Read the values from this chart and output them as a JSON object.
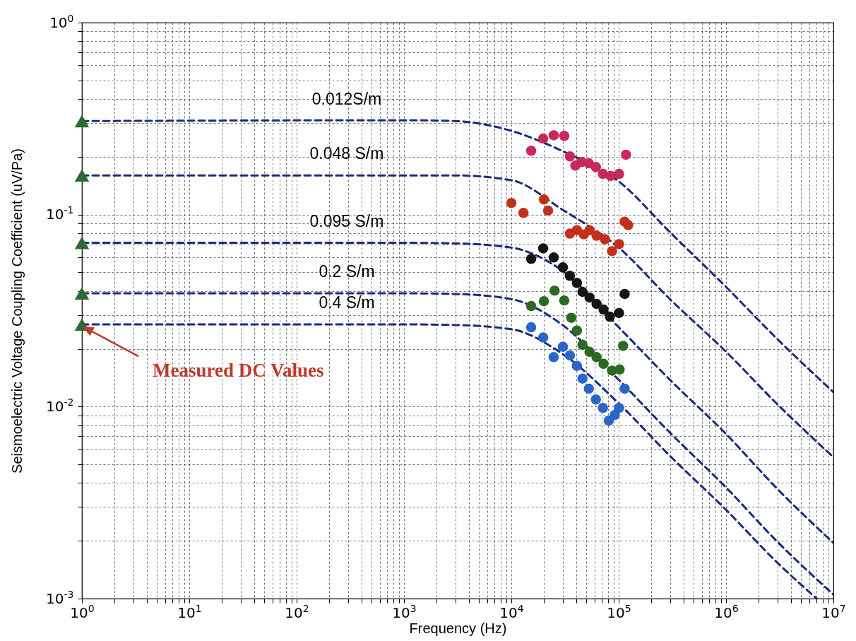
{
  "chart_data": {
    "type": "scatter",
    "xlabel": "Frequency (Hz)",
    "ylabel": "Seismoelectric Voltage Coupling Coefficient (uV/Pa)",
    "log": "xy",
    "grid": true,
    "xlim": [
      1,
      10000000
    ],
    "ylim": [
      0.001,
      1
    ],
    "xticks": [
      {
        "value": 1,
        "label": "10$^{0}$"
      },
      {
        "value": 2,
        "label": null
      },
      {
        "value": 3,
        "label": null
      },
      {
        "value": 4,
        "label": null
      },
      {
        "value": 5,
        "label": null
      },
      {
        "value": 6,
        "label": null
      },
      {
        "value": 7,
        "label": null
      },
      {
        "value": 8,
        "label": null
      },
      {
        "value": 9,
        "label": null
      },
      {
        "value": 10,
        "label": "10$^{1}$"
      },
      {
        "value": 20,
        "label": null
      },
      {
        "value": 30,
        "label": null
      },
      {
        "value": 40,
        "label": null
      },
      {
        "value": 50,
        "label": null
      },
      {
        "value": 60,
        "label": null
      },
      {
        "value": 70,
        "label": null
      },
      {
        "value": 80,
        "label": null
      },
      {
        "value": 90,
        "label": null
      },
      {
        "value": 100,
        "label": "10$^{2}$"
      },
      {
        "value": 200,
        "label": null
      },
      {
        "value": 300,
        "label": null
      },
      {
        "value": 400,
        "label": null
      },
      {
        "value": 500,
        "label": null
      },
      {
        "value": 600,
        "label": null
      },
      {
        "value": 700,
        "label": null
      },
      {
        "value": 800,
        "label": null
      },
      {
        "value": 900,
        "label": null
      },
      {
        "value": 1000,
        "label": "10$^{3}$"
      },
      {
        "value": 2000,
        "label": null
      },
      {
        "value": 3000,
        "label": null
      },
      {
        "value": 4000,
        "label": null
      },
      {
        "value": 5000,
        "label": null
      },
      {
        "value": 6000,
        "label": null
      },
      {
        "value": 7000,
        "label": null
      },
      {
        "value": 8000,
        "label": null
      },
      {
        "value": 9000,
        "label": null
      },
      {
        "value": 10000,
        "label": "10$^{4}$"
      },
      {
        "value": 20000,
        "label": null
      },
      {
        "value": 30000,
        "label": null
      },
      {
        "value": 40000,
        "label": null
      },
      {
        "value": 50000,
        "label": null
      },
      {
        "value": 60000,
        "label": null
      },
      {
        "value": 70000,
        "label": null
      },
      {
        "value": 80000,
        "label": null
      },
      {
        "value": 90000,
        "label": null
      },
      {
        "value": 100000,
        "label": "10$^{5}$"
      },
      {
        "value": 200000,
        "label": null
      },
      {
        "value": 300000,
        "label": null
      },
      {
        "value": 400000,
        "label": null
      },
      {
        "value": 500000,
        "label": null
      },
      {
        "value": 600000,
        "label": null
      },
      {
        "value": 700000,
        "label": null
      },
      {
        "value": 800000,
        "label": null
      },
      {
        "value": 900000,
        "label": null
      },
      {
        "value": 1000000,
        "label": "10$^{6}$"
      },
      {
        "value": 2000000,
        "label": null
      },
      {
        "value": 3000000,
        "label": null
      },
      {
        "value": 4000000,
        "label": null
      },
      {
        "value": 5000000,
        "label": null
      },
      {
        "value": 6000000,
        "label": null
      },
      {
        "value": 7000000,
        "label": null
      },
      {
        "value": 8000000,
        "label": null
      },
      {
        "value": 9000000,
        "label": null
      },
      {
        "value": 10000000,
        "label": "10$^{7}$"
      }
    ],
    "yticks": [
      {
        "value": 0.001,
        "label": "10$^{-3}$"
      },
      {
        "value": 0.002,
        "label": null
      },
      {
        "value": 0.003,
        "label": null
      },
      {
        "value": 0.004,
        "label": null
      },
      {
        "value": 0.005,
        "label": null
      },
      {
        "value": 0.006,
        "label": null
      },
      {
        "value": 0.007,
        "label": null
      },
      {
        "value": 0.008,
        "label": null
      },
      {
        "value": 0.009,
        "label": null
      },
      {
        "value": 0.01,
        "label": "10$^{-2}$"
      },
      {
        "value": 0.02,
        "label": null
      },
      {
        "value": 0.03,
        "label": null
      },
      {
        "value": 0.04,
        "label": null
      },
      {
        "value": 0.05,
        "label": null
      },
      {
        "value": 0.06,
        "label": null
      },
      {
        "value": 0.07,
        "label": null
      },
      {
        "value": 0.08,
        "label": null
      },
      {
        "value": 0.09,
        "label": null
      },
      {
        "value": 0.1,
        "label": "10$^{-1}$"
      },
      {
        "value": 0.2,
        "label": null
      },
      {
        "value": 0.3,
        "label": null
      },
      {
        "value": 0.4,
        "label": null
      },
      {
        "value": 0.5,
        "label": null
      },
      {
        "value": 0.6,
        "label": null
      },
      {
        "value": 0.7,
        "label": null
      },
      {
        "value": 0.8,
        "label": null
      },
      {
        "value": 0.9,
        "label": null
      },
      {
        "value": 1,
        "label": "10$^{0}$"
      }
    ],
    "series": [
      {
        "type": "line",
        "color": "#1c2a80",
        "line_style": "dashed",
        "marker": "none",
        "x": [
          1,
          1000,
          3000,
          10000,
          30000,
          100000,
          300000,
          1000000,
          3000000,
          10000000
        ],
        "values": [
          0.307,
          0.31,
          0.307,
          0.273,
          0.214,
          0.149,
          0.081,
          0.042,
          0.0225,
          0.0119
        ]
      },
      {
        "type": "line",
        "color": "#1c2a80",
        "line_style": "dashed",
        "marker": "none",
        "x": [
          1,
          1000,
          3000,
          10000,
          30000,
          100000,
          300000,
          1000000,
          3000000,
          10000000
        ],
        "values": [
          0.16,
          0.16,
          0.16,
          0.151,
          0.106,
          0.0673,
          0.0363,
          0.0193,
          0.0103,
          0.00545
        ]
      },
      {
        "type": "line",
        "color": "#1c2a80",
        "line_style": "dashed",
        "marker": "none",
        "x": [
          1,
          1000,
          3000,
          10000,
          30000,
          100000,
          300000,
          1000000,
          3000000,
          10000000
        ],
        "values": [
          0.0713,
          0.0713,
          0.0708,
          0.0673,
          0.0509,
          0.0259,
          0.0138,
          0.0072,
          0.00373,
          0.00195
        ]
      },
      {
        "type": "line",
        "color": "#1c2a80",
        "line_style": "dashed",
        "marker": "none",
        "x": [
          1,
          1000,
          3000,
          10000,
          30000,
          100000,
          300000,
          1000000,
          3000000,
          10000000
        ],
        "values": [
          0.0389,
          0.0389,
          0.0386,
          0.0363,
          0.0266,
          0.0138,
          0.00732,
          0.00379,
          0.00198,
          0.00105
        ]
      },
      {
        "type": "line",
        "color": "#1c2a80",
        "line_style": "dashed",
        "marker": "none",
        "x": [
          1,
          1000,
          3000,
          10000,
          30000,
          100000,
          300000,
          1000000,
          3000000,
          7000000
        ],
        "values": [
          0.0268,
          0.0268,
          0.0266,
          0.0253,
          0.0188,
          0.0104,
          0.00554,
          0.0029,
          0.00154,
          0.001
        ]
      },
      {
        "color": "#c8285a",
        "marker": "circle",
        "x": [
          15300,
          19800,
          24800,
          31100,
          35100,
          39500,
          45300,
          52700,
          61300,
          71300,
          84100,
          100700,
          117000
        ],
        "values": [
          0.215,
          0.249,
          0.259,
          0.257,
          0.201,
          0.18,
          0.188,
          0.185,
          0.177,
          0.163,
          0.159,
          0.163,
          0.205
        ]
      },
      {
        "color": "#c0301a",
        "marker": "circle",
        "x": [
          10000,
          12970,
          20100,
          22000,
          35100,
          40800,
          47400,
          53500,
          62200,
          74500,
          86700,
          100700,
          113700,
          122500
        ],
        "values": [
          0.115,
          0.102,
          0.12,
          0.105,
          0.0796,
          0.083,
          0.0789,
          0.083,
          0.0776,
          0.0744,
          0.0645,
          0.0702,
          0.0919,
          0.0881
        ]
      },
      {
        "color": "#151515",
        "marker": "circle",
        "x": [
          15300,
          19800,
          24800,
          30200,
          35100,
          40800,
          46000,
          53500,
          62200,
          72300,
          82800,
          100700,
          113700
        ],
        "values": [
          0.0588,
          0.0667,
          0.0598,
          0.0531,
          0.048,
          0.0441,
          0.0396,
          0.037,
          0.0343,
          0.032,
          0.0294,
          0.0307,
          0.0386
        ]
      },
      {
        "color": "#2b6a22",
        "marker": "circle",
        "x": [
          15300,
          20100,
          25300,
          31100,
          36200,
          40800,
          46000,
          53500,
          62200,
          72300,
          86700,
          102000,
          110000
        ],
        "values": [
          0.0334,
          0.0354,
          0.0402,
          0.0357,
          0.029,
          0.0249,
          0.021,
          0.0193,
          0.0181,
          0.0167,
          0.0154,
          0.0156,
          0.0207
        ]
      },
      {
        "color": "#2a66c8",
        "marker": "circle",
        "x": [
          15300,
          19800,
          24800,
          30200,
          35100,
          40800,
          46000,
          52700,
          61300,
          71300,
          80800,
          92000,
          100700,
          113700
        ],
        "values": [
          0.0259,
          0.0229,
          0.0181,
          0.0205,
          0.0185,
          0.0163,
          0.014,
          0.0124,
          0.0109,
          0.00984,
          0.00845,
          0.00904,
          0.00984,
          0.0124
        ]
      },
      {
        "color": "#2d6a35",
        "marker": "triangle",
        "x": [
          1,
          1,
          1,
          1,
          1
        ],
        "values": [
          0.307,
          0.16,
          0.0713,
          0.0389,
          0.0268
        ]
      }
    ],
    "annotations": [
      "0.012S/m",
      "0.048 S/m",
      "0.095 S/m",
      "0.2 S/m",
      "0.4 S/m",
      "Measured DC Values"
    ]
  }
}
